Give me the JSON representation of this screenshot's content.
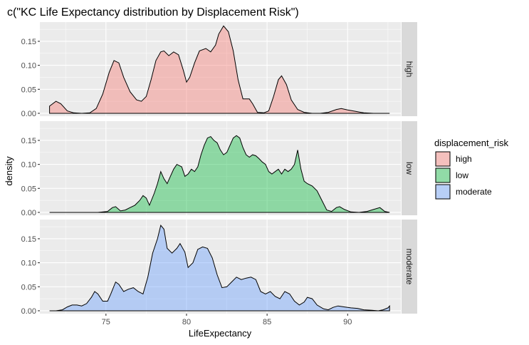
{
  "chart_data": {
    "type": "area",
    "title": "c(\"KC Life Expectancy distribution by Displacement Risk\")",
    "xlabel": "LifeExpectancy",
    "ylabel": "density",
    "xlim": [
      70.9,
      93.3
    ],
    "ylim": [
      -0.006,
      0.19
    ],
    "x_ticks": [
      75,
      80,
      85,
      90
    ],
    "x_tick_labels": [
      "75",
      "80",
      "85",
      "90"
    ],
    "y_ticks": [
      0,
      0.05,
      0.1,
      0.15
    ],
    "y_tick_labels": [
      "0.00",
      "0.05",
      "0.10",
      "0.15"
    ],
    "grid": true,
    "facet_variable": "displacement_risk",
    "legend": {
      "title": "displacement_risk",
      "position": "right"
    },
    "series": [
      {
        "name": "high",
        "color": "#F8766D",
        "points": [
          [
            71.5,
            0.015
          ],
          [
            71.9,
            0.025
          ],
          [
            72.2,
            0.02
          ],
          [
            72.6,
            0.005
          ],
          [
            73.0,
            0.001
          ],
          [
            73.5,
            0.0
          ],
          [
            74.0,
            0.001
          ],
          [
            74.4,
            0.01
          ],
          [
            74.8,
            0.04
          ],
          [
            75.2,
            0.085
          ],
          [
            75.5,
            0.11
          ],
          [
            75.8,
            0.105
          ],
          [
            76.1,
            0.075
          ],
          [
            76.5,
            0.045
          ],
          [
            76.9,
            0.028
          ],
          [
            77.2,
            0.025
          ],
          [
            77.5,
            0.035
          ],
          [
            77.8,
            0.07
          ],
          [
            78.1,
            0.11
          ],
          [
            78.4,
            0.128
          ],
          [
            78.6,
            0.13
          ],
          [
            78.9,
            0.12
          ],
          [
            79.2,
            0.128
          ],
          [
            79.5,
            0.122
          ],
          [
            79.8,
            0.09
          ],
          [
            80.0,
            0.065
          ],
          [
            80.2,
            0.075
          ],
          [
            80.5,
            0.105
          ],
          [
            80.8,
            0.13
          ],
          [
            81.2,
            0.135
          ],
          [
            81.5,
            0.128
          ],
          [
            81.8,
            0.142
          ],
          [
            82.0,
            0.165
          ],
          [
            82.3,
            0.182
          ],
          [
            82.6,
            0.17
          ],
          [
            82.9,
            0.13
          ],
          [
            83.2,
            0.07
          ],
          [
            83.5,
            0.03
          ],
          [
            83.9,
            0.03
          ],
          [
            84.1,
            0.02
          ],
          [
            84.4,
            0.002
          ],
          [
            84.8,
            0.001
          ],
          [
            85.1,
            0.005
          ],
          [
            85.4,
            0.035
          ],
          [
            85.7,
            0.07
          ],
          [
            85.9,
            0.078
          ],
          [
            86.2,
            0.06
          ],
          [
            86.5,
            0.028
          ],
          [
            86.9,
            0.008
          ],
          [
            87.3,
            0.002
          ],
          [
            87.8,
            0.0
          ],
          [
            88.3,
            0.0
          ],
          [
            88.8,
            0.002
          ],
          [
            89.3,
            0.008
          ],
          [
            89.6,
            0.01
          ],
          [
            90.0,
            0.007
          ],
          [
            90.5,
            0.004
          ],
          [
            91.0,
            0.001
          ],
          [
            91.6,
            0.0
          ],
          [
            92.6,
            0.0
          ]
        ]
      },
      {
        "name": "low",
        "color": "#00BA38",
        "points": [
          [
            71.5,
            0.0
          ],
          [
            72.5,
            0.0
          ],
          [
            73.5,
            0.0
          ],
          [
            74.5,
            0.0
          ],
          [
            75.1,
            0.002
          ],
          [
            75.4,
            0.01
          ],
          [
            75.6,
            0.012
          ],
          [
            75.9,
            0.003
          ],
          [
            76.2,
            0.005
          ],
          [
            76.5,
            0.01
          ],
          [
            76.8,
            0.015
          ],
          [
            77.1,
            0.025
          ],
          [
            77.3,
            0.035
          ],
          [
            77.5,
            0.03
          ],
          [
            77.7,
            0.015
          ],
          [
            78.0,
            0.04
          ],
          [
            78.2,
            0.06
          ],
          [
            78.4,
            0.085
          ],
          [
            78.6,
            0.07
          ],
          [
            78.8,
            0.06
          ],
          [
            79.0,
            0.075
          ],
          [
            79.2,
            0.09
          ],
          [
            79.4,
            0.1
          ],
          [
            79.7,
            0.095
          ],
          [
            79.9,
            0.075
          ],
          [
            80.1,
            0.08
          ],
          [
            80.3,
            0.09
          ],
          [
            80.5,
            0.085
          ],
          [
            80.7,
            0.095
          ],
          [
            80.9,
            0.12
          ],
          [
            81.1,
            0.14
          ],
          [
            81.3,
            0.155
          ],
          [
            81.5,
            0.158
          ],
          [
            81.7,
            0.15
          ],
          [
            81.9,
            0.145
          ],
          [
            82.1,
            0.13
          ],
          [
            82.3,
            0.12
          ],
          [
            82.5,
            0.125
          ],
          [
            82.7,
            0.14
          ],
          [
            82.9,
            0.155
          ],
          [
            83.1,
            0.16
          ],
          [
            83.3,
            0.155
          ],
          [
            83.5,
            0.135
          ],
          [
            83.7,
            0.12
          ],
          [
            83.9,
            0.115
          ],
          [
            84.1,
            0.12
          ],
          [
            84.3,
            0.118
          ],
          [
            84.5,
            0.112
          ],
          [
            84.7,
            0.105
          ],
          [
            84.9,
            0.1
          ],
          [
            85.1,
            0.085
          ],
          [
            85.3,
            0.08
          ],
          [
            85.5,
            0.085
          ],
          [
            85.7,
            0.09
          ],
          [
            85.9,
            0.08
          ],
          [
            86.1,
            0.09
          ],
          [
            86.3,
            0.085
          ],
          [
            86.5,
            0.09
          ],
          [
            86.7,
            0.1
          ],
          [
            86.9,
            0.13
          ],
          [
            87.1,
            0.09
          ],
          [
            87.3,
            0.065
          ],
          [
            87.5,
            0.06
          ],
          [
            87.8,
            0.055
          ],
          [
            88.1,
            0.045
          ],
          [
            88.4,
            0.025
          ],
          [
            88.7,
            0.005
          ],
          [
            89.0,
            0.002
          ],
          [
            89.3,
            0.01
          ],
          [
            89.5,
            0.012
          ],
          [
            89.8,
            0.006
          ],
          [
            90.2,
            0.001
          ],
          [
            90.7,
            0.0
          ],
          [
            91.2,
            0.002
          ],
          [
            91.6,
            0.006
          ],
          [
            92.0,
            0.01
          ],
          [
            92.3,
            0.002
          ],
          [
            92.6,
            0.0
          ]
        ]
      },
      {
        "name": "moderate",
        "color": "#619CFF",
        "points": [
          [
            71.5,
            0.0
          ],
          [
            71.9,
            0.0
          ],
          [
            72.3,
            0.002
          ],
          [
            72.6,
            0.008
          ],
          [
            72.9,
            0.012
          ],
          [
            73.2,
            0.012
          ],
          [
            73.5,
            0.01
          ],
          [
            73.8,
            0.015
          ],
          [
            74.1,
            0.028
          ],
          [
            74.3,
            0.04
          ],
          [
            74.5,
            0.035
          ],
          [
            74.8,
            0.02
          ],
          [
            75.1,
            0.02
          ],
          [
            75.3,
            0.035
          ],
          [
            75.6,
            0.06
          ],
          [
            75.8,
            0.055
          ],
          [
            76.1,
            0.04
          ],
          [
            76.4,
            0.045
          ],
          [
            76.7,
            0.048
          ],
          [
            77.0,
            0.04
          ],
          [
            77.3,
            0.035
          ],
          [
            77.6,
            0.07
          ],
          [
            77.9,
            0.12
          ],
          [
            78.2,
            0.15
          ],
          [
            78.4,
            0.178
          ],
          [
            78.6,
            0.17
          ],
          [
            78.8,
            0.13
          ],
          [
            79.1,
            0.12
          ],
          [
            79.4,
            0.13
          ],
          [
            79.6,
            0.14
          ],
          [
            79.9,
            0.122
          ],
          [
            80.1,
            0.09
          ],
          [
            80.4,
            0.1
          ],
          [
            80.7,
            0.128
          ],
          [
            81.0,
            0.133
          ],
          [
            81.3,
            0.13
          ],
          [
            81.6,
            0.11
          ],
          [
            81.9,
            0.075
          ],
          [
            82.2,
            0.048
          ],
          [
            82.5,
            0.05
          ],
          [
            82.8,
            0.06
          ],
          [
            83.1,
            0.07
          ],
          [
            83.4,
            0.065
          ],
          [
            83.7,
            0.068
          ],
          [
            84.0,
            0.07
          ],
          [
            84.3,
            0.065
          ],
          [
            84.6,
            0.04
          ],
          [
            84.9,
            0.035
          ],
          [
            85.2,
            0.04
          ],
          [
            85.5,
            0.03
          ],
          [
            85.8,
            0.025
          ],
          [
            86.1,
            0.04
          ],
          [
            86.4,
            0.035
          ],
          [
            86.7,
            0.02
          ],
          [
            87.0,
            0.012
          ],
          [
            87.3,
            0.018
          ],
          [
            87.5,
            0.028
          ],
          [
            87.8,
            0.025
          ],
          [
            88.1,
            0.012
          ],
          [
            88.5,
            0.004
          ],
          [
            88.8,
            0.002
          ],
          [
            89.1,
            0.007
          ],
          [
            89.4,
            0.01
          ],
          [
            89.8,
            0.008
          ],
          [
            90.2,
            0.006
          ],
          [
            90.6,
            0.005
          ],
          [
            91.0,
            0.002
          ],
          [
            91.5,
            0.001
          ],
          [
            91.9,
            0.0
          ],
          [
            92.2,
            0.002
          ],
          [
            92.5,
            0.006
          ],
          [
            92.6,
            0.01
          ]
        ]
      }
    ]
  }
}
